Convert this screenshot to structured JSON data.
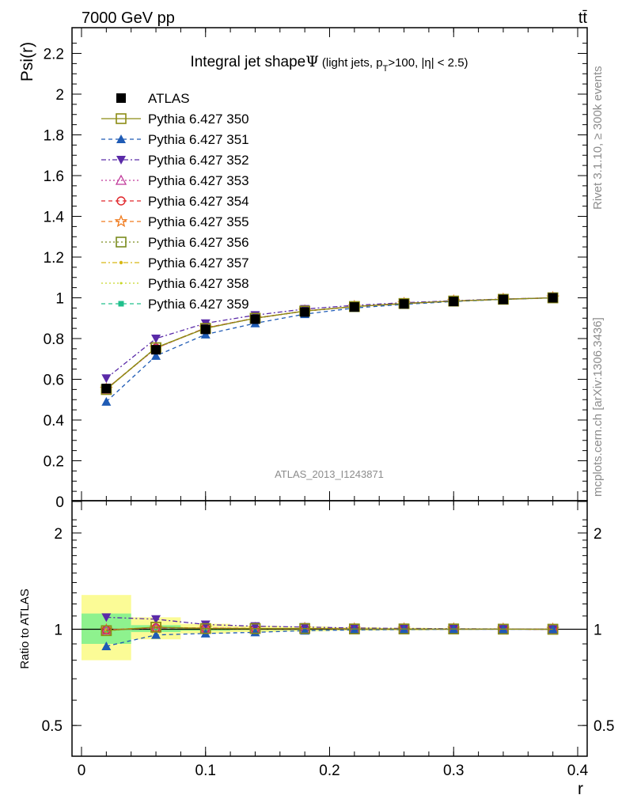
{
  "header": {
    "energy_label": "7000 GeV pp",
    "process_label": "tt̄"
  },
  "side_labels": {
    "rivet": "Rivet 3.1.10, ≥ 300k events",
    "mcplots": "mcplots.cern.ch [arXiv:1306.3436]"
  },
  "watermark": "ATLAS_2013_I1243871",
  "chart_data": [
    {
      "type": "line",
      "title_main": "Integral jet shape",
      "title_symbol": "Ψ",
      "title_detail": "(light jets, p",
      "title_detail_sub": "T",
      "title_detail_rest": ">100, |η| < 2.5)",
      "ylabel": "Psi(r)",
      "xlim": [
        0,
        0.4
      ],
      "ylim": [
        0,
        2.3
      ],
      "yticks": [
        "0",
        "0.2",
        "0.4",
        "0.6",
        "0.8",
        "1",
        "1.2",
        "1.4",
        "1.6",
        "1.8",
        "2",
        "2.2"
      ],
      "x": [
        0.02,
        0.06,
        0.1,
        0.14,
        0.18,
        0.22,
        0.26,
        0.3,
        0.34,
        0.38
      ],
      "series": [
        {
          "name": "ATLAS",
          "color": "#000000",
          "marker": "square-filled",
          "dash": "none",
          "values": [
            0.555,
            0.745,
            0.845,
            0.895,
            0.93,
            0.955,
            0.97,
            0.982,
            0.992,
            1.0
          ]
        },
        {
          "name": "Pythia 6.427 350",
          "color": "#8c8c14",
          "marker": "square-open",
          "dash": "solid",
          "values": [
            0.55,
            0.755,
            0.85,
            0.9,
            0.935,
            0.957,
            0.972,
            0.984,
            0.993,
            1.0
          ]
        },
        {
          "name": "Pythia 6.427 351",
          "color": "#1f5bb5",
          "marker": "triangle-up-filled",
          "dash": "5,4",
          "values": [
            0.49,
            0.715,
            0.82,
            0.875,
            0.92,
            0.95,
            0.968,
            0.982,
            0.992,
            1.0
          ]
        },
        {
          "name": "Pythia 6.427 352",
          "color": "#5a2aa8",
          "marker": "triangle-down-filled",
          "dash": "6,3,2,3",
          "values": [
            0.605,
            0.8,
            0.875,
            0.915,
            0.945,
            0.963,
            0.976,
            0.986,
            0.994,
            1.0
          ]
        },
        {
          "name": "Pythia 6.427 353",
          "color": "#c0389a",
          "marker": "triangle-up-open",
          "dash": "2,3",
          "values": [
            0.552,
            0.752,
            0.852,
            0.9,
            0.935,
            0.957,
            0.972,
            0.984,
            0.993,
            1.0
          ]
        },
        {
          "name": "Pythia 6.427 354",
          "color": "#e0262b",
          "marker": "circle-open",
          "dash": "5,4",
          "values": [
            0.552,
            0.753,
            0.852,
            0.9,
            0.935,
            0.957,
            0.972,
            0.984,
            0.993,
            1.0
          ]
        },
        {
          "name": "Pythia 6.427 355",
          "color": "#f07b1e",
          "marker": "star-open",
          "dash": "5,4",
          "values": [
            0.552,
            0.753,
            0.852,
            0.9,
            0.935,
            0.957,
            0.972,
            0.984,
            0.993,
            1.0
          ]
        },
        {
          "name": "Pythia 6.427 356",
          "color": "#7a8c1e",
          "marker": "square-open",
          "dash": "2,3",
          "values": [
            0.55,
            0.755,
            0.85,
            0.9,
            0.935,
            0.957,
            0.972,
            0.984,
            0.993,
            1.0
          ]
        },
        {
          "name": "Pythia 6.427 357",
          "color": "#d8b814",
          "marker": "dot",
          "dash": "6,3,2,3",
          "values": [
            0.552,
            0.755,
            0.852,
            0.9,
            0.935,
            0.957,
            0.972,
            0.984,
            0.993,
            1.0
          ]
        },
        {
          "name": "Pythia 6.427 358",
          "color": "#c8d828",
          "marker": "small-dot",
          "dash": "2,3",
          "values": [
            0.552,
            0.755,
            0.852,
            0.9,
            0.935,
            0.957,
            0.972,
            0.984,
            0.993,
            1.0
          ]
        },
        {
          "name": "Pythia 6.427 359",
          "color": "#20c08c",
          "marker": "square-small",
          "dash": "5,4",
          "values": [
            0.552,
            0.755,
            0.852,
            0.9,
            0.935,
            0.957,
            0.972,
            0.984,
            0.993,
            1.0
          ]
        }
      ]
    },
    {
      "type": "line",
      "ylabel": "Ratio to ATLAS",
      "xlabel": "r",
      "xlim": [
        0,
        0.4
      ],
      "ylim": [
        0.4,
        2.4
      ],
      "scale": "log",
      "xticks": [
        "0",
        "0.1",
        "0.2",
        "0.3",
        "0.4"
      ],
      "yticks": [
        "0.5",
        "1",
        "2"
      ],
      "band_colors": {
        "stat": "#8ef28e",
        "total": "#fbfb96"
      },
      "bands": [
        {
          "x0": 0.0,
          "x1": 0.04,
          "stat": [
            0.9,
            1.12
          ],
          "total": [
            0.8,
            1.28
          ]
        },
        {
          "x0": 0.04,
          "x1": 0.08,
          "stat": [
            0.98,
            1.03
          ],
          "total": [
            0.93,
            1.09
          ]
        },
        {
          "x0": 0.08,
          "x1": 0.12,
          "stat": [
            0.99,
            1.01
          ],
          "total": [
            0.97,
            1.04
          ]
        },
        {
          "x0": 0.12,
          "x1": 0.16,
          "stat": [
            0.995,
            1.007
          ],
          "total": [
            0.98,
            1.025
          ]
        },
        {
          "x0": 0.16,
          "x1": 0.2,
          "stat": [
            0.996,
            1.005
          ],
          "total": [
            0.985,
            1.02
          ]
        },
        {
          "x0": 0.2,
          "x1": 0.24,
          "stat": [
            0.997,
            1.004
          ],
          "total": [
            0.99,
            1.015
          ]
        },
        {
          "x0": 0.24,
          "x1": 0.28,
          "stat": [
            0.998,
            1.003
          ],
          "total": [
            0.992,
            1.01
          ]
        },
        {
          "x0": 0.28,
          "x1": 0.32,
          "stat": [
            0.998,
            1.002
          ],
          "total": [
            0.995,
            1.006
          ]
        }
      ],
      "x": [
        0.02,
        0.06,
        0.1,
        0.14,
        0.18,
        0.22,
        0.26,
        0.3,
        0.34,
        0.38
      ],
      "series": [
        {
          "name": "Pythia 6.427 350",
          "color": "#8c8c14",
          "marker": "square-open",
          "dash": "solid",
          "values": [
            0.99,
            1.015,
            1.005,
            1.005,
            1.005,
            1.002,
            1.002,
            1.002,
            1.001,
            1.0
          ]
        },
        {
          "name": "Pythia 6.427 351",
          "color": "#1f5bb5",
          "marker": "triangle-up-filled",
          "dash": "5,4",
          "values": [
            0.885,
            0.96,
            0.97,
            0.978,
            0.99,
            0.995,
            0.998,
            1.0,
            1.0,
            1.0
          ]
        },
        {
          "name": "Pythia 6.427 352",
          "color": "#5a2aa8",
          "marker": "triangle-down-filled",
          "dash": "6,3,2,3",
          "values": [
            1.09,
            1.075,
            1.035,
            1.022,
            1.016,
            1.009,
            1.006,
            1.004,
            1.002,
            1.0
          ]
        },
        {
          "name": "Pythia 6.427 353",
          "color": "#c0389a",
          "marker": "triangle-up-open",
          "dash": "2,3",
          "values": [
            0.995,
            1.01,
            1.008,
            1.005,
            1.005,
            1.002,
            1.002,
            1.002,
            1.001,
            1.0
          ]
        },
        {
          "name": "Pythia 6.427 354",
          "color": "#e0262b",
          "marker": "circle-open",
          "dash": "5,4",
          "values": [
            0.995,
            1.01,
            1.008,
            1.005,
            1.005,
            1.002,
            1.002,
            1.002,
            1.001,
            1.0
          ]
        },
        {
          "name": "Pythia 6.427 355",
          "color": "#f07b1e",
          "marker": "star-open",
          "dash": "5,4",
          "values": [
            0.995,
            1.01,
            1.008,
            1.005,
            1.005,
            1.002,
            1.002,
            1.002,
            1.001,
            1.0
          ]
        },
        {
          "name": "Pythia 6.427 356",
          "color": "#7a8c1e",
          "marker": "square-open",
          "dash": "2,3",
          "values": [
            0.99,
            1.015,
            1.005,
            1.005,
            1.005,
            1.002,
            1.002,
            1.002,
            1.001,
            1.0
          ]
        },
        {
          "name": "Pythia 6.427 357",
          "color": "#d8b814",
          "marker": "dot",
          "dash": "6,3,2,3",
          "values": [
            0.995,
            1.015,
            1.008,
            1.005,
            1.005,
            1.002,
            1.002,
            1.002,
            1.001,
            1.0
          ]
        },
        {
          "name": "Pythia 6.427 358",
          "color": "#c8d828",
          "marker": "small-dot",
          "dash": "2,3",
          "values": [
            0.995,
            1.015,
            1.008,
            1.005,
            1.005,
            1.002,
            1.002,
            1.002,
            1.001,
            1.0
          ]
        },
        {
          "name": "Pythia 6.427 359",
          "color": "#20c08c",
          "marker": "square-small",
          "dash": "5,4",
          "values": [
            0.995,
            1.015,
            1.008,
            1.005,
            1.005,
            1.002,
            1.002,
            1.002,
            1.001,
            1.0
          ]
        }
      ]
    }
  ]
}
